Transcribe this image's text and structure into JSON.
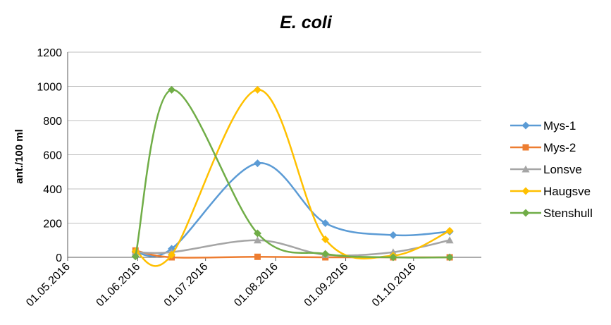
{
  "chart_data": {
    "type": "line",
    "title": "E. coli",
    "xlabel": "",
    "ylabel": "ant./100 ml",
    "x_ticks": [
      "01.05.2016",
      "01.06.2016",
      "01.07.2016",
      "01.08.2016",
      "01.09.2016",
      "01.10.2016"
    ],
    "xlim": [
      "2016-05-01",
      "2016-10-31"
    ],
    "y_ticks": [
      0,
      200,
      400,
      600,
      800,
      1000,
      1200
    ],
    "ylim": [
      0,
      1200
    ],
    "grid": "horizontal",
    "legend": "right",
    "smooth": true,
    "x": [
      "2016-05-31",
      "2016-06-16",
      "2016-07-24",
      "2016-08-23",
      "2016-09-22",
      "2016-10-17"
    ],
    "series": [
      {
        "name": "Mys-1",
        "color": "#5B9BD5",
        "marker": "diamond",
        "values": [
          30,
          50,
          550,
          200,
          130,
          150
        ]
      },
      {
        "name": "Mys-2",
        "color": "#ED7D31",
        "marker": "square",
        "values": [
          40,
          0,
          3,
          0,
          0,
          0
        ]
      },
      {
        "name": "Lonsve",
        "color": "#A5A5A5",
        "marker": "triangle",
        "values": [
          30,
          30,
          100,
          15,
          30,
          100
        ]
      },
      {
        "name": "Haugsve",
        "color": "#FFC000",
        "marker": "diamond",
        "values": [
          35,
          15,
          980,
          105,
          10,
          155
        ]
      },
      {
        "name": "Stenshull",
        "color": "#70AD47",
        "marker": "diamond",
        "values": [
          5,
          980,
          140,
          20,
          0,
          0
        ]
      }
    ]
  }
}
